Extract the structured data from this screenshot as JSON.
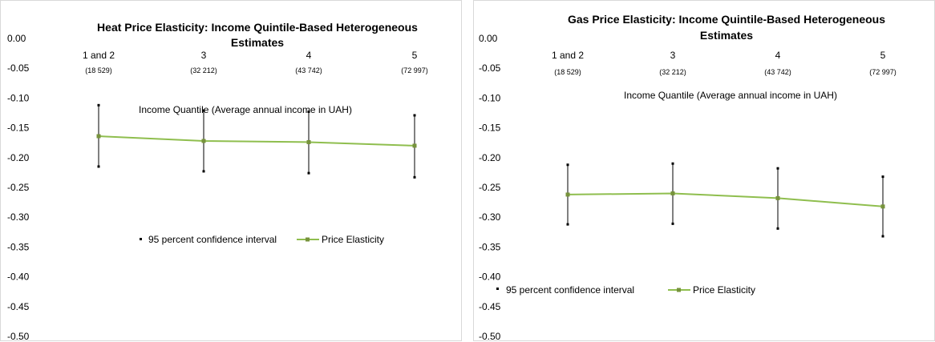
{
  "colors": {
    "line": "#8fbe4e",
    "marker": "#77933c",
    "errorbar": "#000000",
    "border": "#d9d9d9"
  },
  "chart_data": [
    {
      "type": "line",
      "title_lines": [
        "Heat Price Elasticity: Income Quintile-Based Heterogeneous",
        "Estimates"
      ],
      "xlabel": "Income Quantile (Average annual income in UAH)",
      "categories": [
        "1 and 2",
        "3",
        "4",
        "5"
      ],
      "category_sublabels": [
        "(18 529)",
        "(32 212)",
        "(43 742)",
        "(72 997)"
      ],
      "yticks": [
        "0.00",
        "-0.05",
        "-0.10",
        "-0.15",
        "-0.20",
        "-0.25",
        "-0.30",
        "-0.35",
        "-0.40",
        "-0.45",
        "-0.50"
      ],
      "ylim": [
        -0.5,
        0
      ],
      "grid": false,
      "legend_position": "middle",
      "series": [
        {
          "name": "Price Elasticity",
          "values": [
            -0.164,
            -0.172,
            -0.174,
            -0.18
          ]
        },
        {
          "name": "95 percent confidence interval",
          "lower": [
            -0.215,
            -0.223,
            -0.226,
            -0.233
          ],
          "upper": [
            -0.112,
            -0.121,
            -0.123,
            -0.129
          ]
        }
      ]
    },
    {
      "type": "line",
      "title_lines": [
        "Gas Price Elasticity: Income Quintile-Based Heterogeneous",
        "Estimates"
      ],
      "xlabel": "Income Quantile (Average annual income in UAH)",
      "categories": [
        "1 and 2",
        "3",
        "4",
        "5"
      ],
      "category_sublabels": [
        "(18 529)",
        "(32 212)",
        "(43 742)",
        "(72 997)"
      ],
      "yticks": [
        "0.00",
        "-0.05",
        "-0.10",
        "-0.15",
        "-0.20",
        "-0.25",
        "-0.30",
        "-0.35",
        "-0.40",
        "-0.45",
        "-0.50"
      ],
      "ylim": [
        -0.5,
        0
      ],
      "grid": false,
      "legend_position": "bottom",
      "series": [
        {
          "name": "Price Elasticity",
          "values": [
            -0.262,
            -0.26,
            -0.268,
            -0.282
          ]
        },
        {
          "name": "95 percent confidence interval",
          "lower": [
            -0.312,
            -0.311,
            -0.319,
            -0.332
          ],
          "upper": [
            -0.212,
            -0.21,
            -0.218,
            -0.232
          ]
        }
      ]
    }
  ]
}
